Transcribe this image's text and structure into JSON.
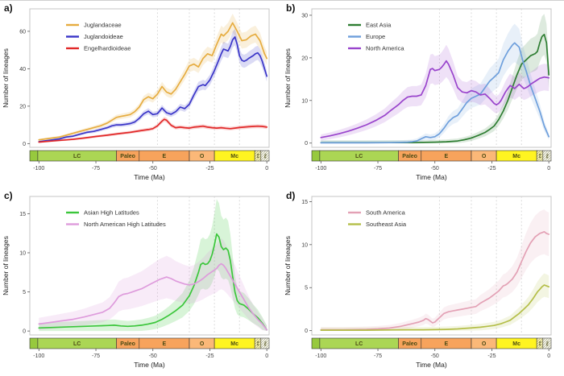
{
  "figure": {
    "xlabel": "Time (Ma)",
    "ylabel": "Number of lineages",
    "xticks": [
      -100,
      -75,
      -50,
      -25,
      0
    ],
    "xlim": [
      -104,
      1
    ],
    "dashed_lines": [
      -48,
      -34,
      -23,
      -12
    ],
    "dashed_line_color": "#d4d4d4",
    "frame_color": "#c4c4c4"
  },
  "timescale": {
    "border_color": "#333333",
    "label_color": "#4a4a14",
    "segments": [
      {
        "label": "",
        "from": -104,
        "to": -100.5,
        "color": "#97c93e",
        "hatch": false,
        "rotate": false
      },
      {
        "label": "LC",
        "from": -100.5,
        "to": -66,
        "color": "#abd654",
        "hatch": false,
        "rotate": false
      },
      {
        "label": "Paleo",
        "from": -66,
        "to": -56,
        "color": "#f7a35c",
        "hatch": false,
        "rotate": false
      },
      {
        "label": "E",
        "from": -56,
        "to": -34,
        "color": "#f7a35c",
        "hatch": false,
        "rotate": false
      },
      {
        "label": "O",
        "from": -34,
        "to": -23,
        "color": "#fbb878",
        "hatch": false,
        "rotate": false
      },
      {
        "label": "Mc",
        "from": -23,
        "to": -5.3,
        "color": "#fff421",
        "hatch": false,
        "rotate": false
      },
      {
        "label": "Pli",
        "from": -5.3,
        "to": -2.6,
        "color": "#fff9a6",
        "hatch": true,
        "rotate": true
      },
      {
        "label": "Ple",
        "from": -2.6,
        "to": 1,
        "color": "#fdfde8",
        "hatch": true,
        "rotate": true
      }
    ]
  },
  "chart_data": [
    {
      "type": "line",
      "panel_label": "a)",
      "ylabel": "Number of lineages",
      "xlabel": "Time (Ma)",
      "yticks": [
        0,
        20,
        40,
        60
      ],
      "ylim": [
        -2,
        72
      ],
      "legend_position": "top-left",
      "band": {
        "base": 0.4,
        "factor": 0.07,
        "opacity": 0.18
      },
      "series": [
        {
          "name": "Juglandaceae",
          "color": "#e6ac3f",
          "x": [
            -100,
            -97,
            -94,
            -91,
            -88,
            -85,
            -82,
            -79,
            -76,
            -73,
            -70,
            -68,
            -66,
            -64,
            -62,
            -60,
            -58,
            -56,
            -54,
            -52,
            -50,
            -48,
            -46,
            -44,
            -42,
            -40,
            -38,
            -36,
            -34,
            -32,
            -30,
            -28,
            -26,
            -24,
            -22,
            -20,
            -19,
            -17,
            -15,
            -13,
            -11,
            -9,
            -7,
            -5,
            -3,
            -1,
            0
          ],
          "y": [
            2,
            2.5,
            3,
            3.5,
            4.5,
            5.5,
            6.5,
            7.5,
            8.5,
            9.5,
            11,
            12.5,
            14,
            14.5,
            15,
            15.5,
            17,
            19.5,
            23.5,
            25,
            24,
            26.5,
            30.5,
            27.5,
            26.5,
            29,
            33,
            37,
            41.5,
            42.5,
            41,
            45.5,
            48,
            47,
            53,
            58.5,
            57.5,
            60,
            64.5,
            60,
            55,
            55.5,
            57.5,
            58.5,
            55,
            48,
            45.5
          ]
        },
        {
          "name": "Juglandoideae",
          "color": "#3a35c8",
          "x": [
            -100,
            -97,
            -94,
            -91,
            -88,
            -85,
            -82,
            -79,
            -76,
            -73,
            -70,
            -68,
            -66,
            -64,
            -62,
            -60,
            -58,
            -56,
            -54,
            -52,
            -50,
            -48,
            -46,
            -44,
            -42,
            -40,
            -38,
            -36,
            -34,
            -32,
            -30,
            -28,
            -27,
            -25,
            -23,
            -21,
            -20,
            -19,
            -18,
            -17,
            -16,
            -15,
            -14,
            -13,
            -12,
            -11,
            -10,
            -9,
            -8,
            -6,
            -5,
            -4,
            -3,
            -2,
            -1,
            0
          ],
          "y": [
            1,
            1.5,
            2,
            2.5,
            3.5,
            4,
            5,
            6,
            6.5,
            7.5,
            8.5,
            9.5,
            10,
            10,
            10.3,
            10.7,
            11.5,
            13.5,
            16,
            17.3,
            15.5,
            16,
            19,
            16.5,
            15.7,
            17,
            19.5,
            18.7,
            21,
            26,
            30.5,
            31.5,
            31,
            34,
            39,
            45,
            48,
            50.5,
            50,
            49.5,
            52,
            55.5,
            57,
            53,
            47,
            44.5,
            44,
            44.5,
            45.5,
            47,
            48,
            48.5,
            47,
            44,
            40,
            36
          ]
        },
        {
          "name": "Engelhardioideae",
          "color": "#e12828",
          "x": [
            -100,
            -95,
            -90,
            -85,
            -80,
            -75,
            -70,
            -65,
            -60,
            -55,
            -52,
            -50,
            -48,
            -46,
            -45,
            -44,
            -42,
            -40,
            -38,
            -36,
            -34,
            -32,
            -30,
            -28,
            -26,
            -24,
            -22,
            -20,
            -18,
            -16,
            -14,
            -12,
            -10,
            -8,
            -6,
            -4,
            -2,
            0
          ],
          "y": [
            0.8,
            1.3,
            1.8,
            2.3,
            3,
            3.8,
            4.5,
            5.3,
            6,
            7,
            7.5,
            8,
            9.5,
            12,
            13,
            12.5,
            9.8,
            8.5,
            8.8,
            8.5,
            8.3,
            8.8,
            9,
            9.3,
            8.8,
            8.5,
            8.3,
            8.5,
            8.2,
            8,
            8.3,
            8.6,
            8.8,
            9,
            9.2,
            9.3,
            9.2,
            8.8
          ]
        }
      ]
    },
    {
      "type": "line",
      "panel_label": "b)",
      "ylabel": "Number of lineages",
      "xlabel": "Time (Ma)",
      "yticks": [
        0,
        10,
        20,
        30
      ],
      "ylim": [
        -1,
        31.5
      ],
      "legend_position": "top-left",
      "band": {
        "base": 0.5,
        "factor": 0.17,
        "opacity": 0.16
      },
      "series": [
        {
          "name": "East Asia",
          "color": "#2e7d32",
          "x": [
            -100,
            -90,
            -80,
            -70,
            -60,
            -55,
            -50,
            -45,
            -40,
            -37,
            -34,
            -31,
            -28,
            -26,
            -24,
            -22,
            -20,
            -18,
            -16,
            -14,
            -12,
            -10,
            -8,
            -6,
            -5,
            -4,
            -3,
            -2,
            -1,
            0
          ],
          "y": [
            0.1,
            0.1,
            0.1,
            0.1,
            0.1,
            0.15,
            0.2,
            0.3,
            0.5,
            0.8,
            1.2,
            1.8,
            2.5,
            3.2,
            4,
            5.5,
            7.5,
            10,
            13,
            16,
            18.5,
            19.5,
            20.5,
            21,
            21.5,
            23.5,
            25,
            25.5,
            23.5,
            16
          ]
        },
        {
          "name": "Europe",
          "color": "#6e9fdc",
          "x": [
            -100,
            -90,
            -80,
            -70,
            -65,
            -62,
            -60,
            -58,
            -56,
            -54,
            -52,
            -50,
            -48,
            -46,
            -44,
            -42,
            -40,
            -38,
            -36,
            -34,
            -32,
            -30,
            -28,
            -26,
            -24,
            -22,
            -20,
            -18,
            -16,
            -15,
            -14,
            -13,
            -12,
            -11,
            -10,
            -8,
            -6,
            -4,
            -2,
            0
          ],
          "y": [
            0.05,
            0.05,
            0.05,
            0.1,
            0.15,
            0.2,
            0.3,
            0.5,
            1,
            1.5,
            1.3,
            1.5,
            2.2,
            3.5,
            5,
            6,
            6.5,
            8,
            9.5,
            10.5,
            11,
            11.5,
            13,
            14.5,
            15.5,
            16.5,
            19.5,
            21.5,
            23,
            23.5,
            23,
            22.5,
            20.5,
            18.5,
            17,
            13.5,
            10.5,
            7.5,
            4,
            1.5
          ]
        },
        {
          "name": "North America",
          "color": "#9944cc",
          "x": [
            -100,
            -96,
            -92,
            -88,
            -84,
            -80,
            -76,
            -72,
            -69,
            -66,
            -64,
            -62,
            -60,
            -58,
            -56,
            -54,
            -52,
            -51,
            -50,
            -48,
            -47,
            -46,
            -45,
            -44,
            -42,
            -40,
            -38,
            -36,
            -34,
            -32,
            -30,
            -28,
            -26,
            -24,
            -23,
            -22,
            -21,
            -20,
            -19,
            -18,
            -17,
            -16,
            -15,
            -14,
            -13,
            -12,
            -11,
            -10,
            -9,
            -8,
            -6,
            -4,
            -2,
            0
          ],
          "y": [
            1.3,
            1.7,
            2.2,
            2.8,
            3.5,
            4.3,
            5.3,
            6.5,
            7.8,
            9,
            10,
            10.8,
            11,
            11,
            11.3,
            13.5,
            17.3,
            17.5,
            17,
            17.3,
            17.8,
            18.5,
            19.3,
            18.5,
            16,
            13,
            12,
            11.8,
            12.3,
            12,
            11.3,
            11.5,
            10.5,
            9.3,
            9,
            9.3,
            10,
            11,
            12,
            12.8,
            13.5,
            13.2,
            12.8,
            13.3,
            13.8,
            13.3,
            12.8,
            13,
            13.3,
            13.8,
            14.5,
            15.2,
            15.5,
            15.3
          ]
        }
      ]
    },
    {
      "type": "line",
      "panel_label": "c)",
      "ylabel": "Number of lineages",
      "xlabel": "Time (Ma)",
      "yticks": [
        0,
        5,
        10,
        15
      ],
      "ylim": [
        -0.5,
        17.2
      ],
      "legend_position": "top-left",
      "band": {
        "base": 0.5,
        "factor": 0.32,
        "opacity": 0.2
      },
      "series": [
        {
          "name": "Asian High Latitudes",
          "color": "#3bc63b",
          "x": [
            -100,
            -95,
            -90,
            -85,
            -80,
            -75,
            -70,
            -67,
            -64,
            -61,
            -58,
            -55,
            -52,
            -49,
            -46,
            -43,
            -40,
            -37,
            -34,
            -32,
            -30,
            -29,
            -28,
            -27,
            -26,
            -25,
            -24,
            -23,
            -22,
            -21,
            -20,
            -19,
            -18,
            -17,
            -16,
            -15,
            -14,
            -13,
            -12,
            -11,
            -10,
            -8,
            -6,
            -4,
            -2,
            0
          ],
          "y": [
            0.4,
            0.45,
            0.5,
            0.55,
            0.6,
            0.65,
            0.7,
            0.75,
            0.65,
            0.6,
            0.65,
            0.75,
            0.9,
            1.1,
            1.5,
            2,
            2.6,
            3.3,
            4.5,
            5.8,
            7.5,
            8.5,
            8.7,
            8.5,
            8.6,
            9,
            9.8,
            11,
            12.4,
            12,
            10.8,
            10.4,
            10.6,
            10.3,
            9,
            7,
            5,
            3.9,
            3.5,
            3.4,
            3.3,
            2.8,
            2.2,
            1.7,
            1,
            0.15
          ]
        },
        {
          "name": "North American High Latitudes",
          "color": "#de9bdc",
          "x": [
            -100,
            -95,
            -90,
            -85,
            -80,
            -76,
            -72,
            -69,
            -67,
            -65,
            -63,
            -61,
            -59,
            -57,
            -55,
            -53,
            -51,
            -49,
            -47,
            -45,
            -44,
            -42,
            -40,
            -38,
            -36,
            -34,
            -32,
            -30,
            -28,
            -26,
            -24,
            -22,
            -21,
            -20,
            -19,
            -18,
            -16,
            -14,
            -12,
            -10,
            -8,
            -6,
            -4,
            -2,
            0
          ],
          "y": [
            0.9,
            1.1,
            1.3,
            1.5,
            1.8,
            2.1,
            2.4,
            2.9,
            3.6,
            4.4,
            4.7,
            4.8,
            5,
            5.2,
            5.4,
            5.7,
            6,
            6.3,
            6.6,
            6.8,
            6.9,
            6.7,
            6.4,
            6.2,
            6,
            5.9,
            6,
            6.3,
            6.7,
            7.2,
            7.6,
            8,
            8.4,
            8.6,
            8.4,
            8,
            7,
            6,
            5,
            4,
            3,
            2.2,
            1.5,
            0.9,
            0.15
          ]
        }
      ]
    },
    {
      "type": "line",
      "panel_label": "d)",
      "ylabel": "Number of lineages",
      "xlabel": "Time (Ma)",
      "yticks": [
        0,
        5,
        10,
        15
      ],
      "ylim": [
        -0.5,
        15.6
      ],
      "legend_position": "top-left",
      "band": {
        "base": 0.3,
        "factor": 0.2,
        "opacity": 0.16
      },
      "series": [
        {
          "name": "South America",
          "color": "#e3a1b5",
          "x": [
            -100,
            -90,
            -80,
            -75,
            -70,
            -65,
            -60,
            -57,
            -55,
            -54,
            -53,
            -52,
            -51,
            -50,
            -48,
            -46,
            -44,
            -42,
            -40,
            -38,
            -36,
            -34,
            -32,
            -30,
            -28,
            -26,
            -24,
            -22,
            -20,
            -19,
            -18,
            -16,
            -14,
            -12,
            -10,
            -8,
            -6,
            -4,
            -3,
            -2,
            -1,
            0
          ],
          "y": [
            0.1,
            0.1,
            0.15,
            0.2,
            0.3,
            0.5,
            0.8,
            1,
            1.2,
            1.4,
            1.3,
            1.1,
            0.9,
            1,
            1.5,
            2,
            2.2,
            2.3,
            2.4,
            2.5,
            2.6,
            2.7,
            2.8,
            3.2,
            3.5,
            3.8,
            4.2,
            4.6,
            5.2,
            5.3,
            5.5,
            6,
            6.8,
            8,
            9.2,
            10.2,
            10.9,
            11.3,
            11.4,
            11.5,
            11.3,
            11.2
          ]
        },
        {
          "name": "Southeast Asia",
          "color": "#b4be48",
          "x": [
            -100,
            -90,
            -80,
            -70,
            -60,
            -55,
            -50,
            -45,
            -40,
            -35,
            -30,
            -27,
            -24,
            -21,
            -19,
            -17,
            -15,
            -13,
            -11,
            -9,
            -7,
            -5,
            -4,
            -3,
            -2,
            -1,
            0
          ],
          "y": [
            0.05,
            0.05,
            0.05,
            0.08,
            0.1,
            0.1,
            0.12,
            0.15,
            0.2,
            0.3,
            0.4,
            0.5,
            0.6,
            0.8,
            1,
            1.2,
            1.6,
            2,
            2.5,
            3,
            3.7,
            4.5,
            4.8,
            5.1,
            5.3,
            5.2,
            5.1
          ]
        }
      ]
    }
  ]
}
